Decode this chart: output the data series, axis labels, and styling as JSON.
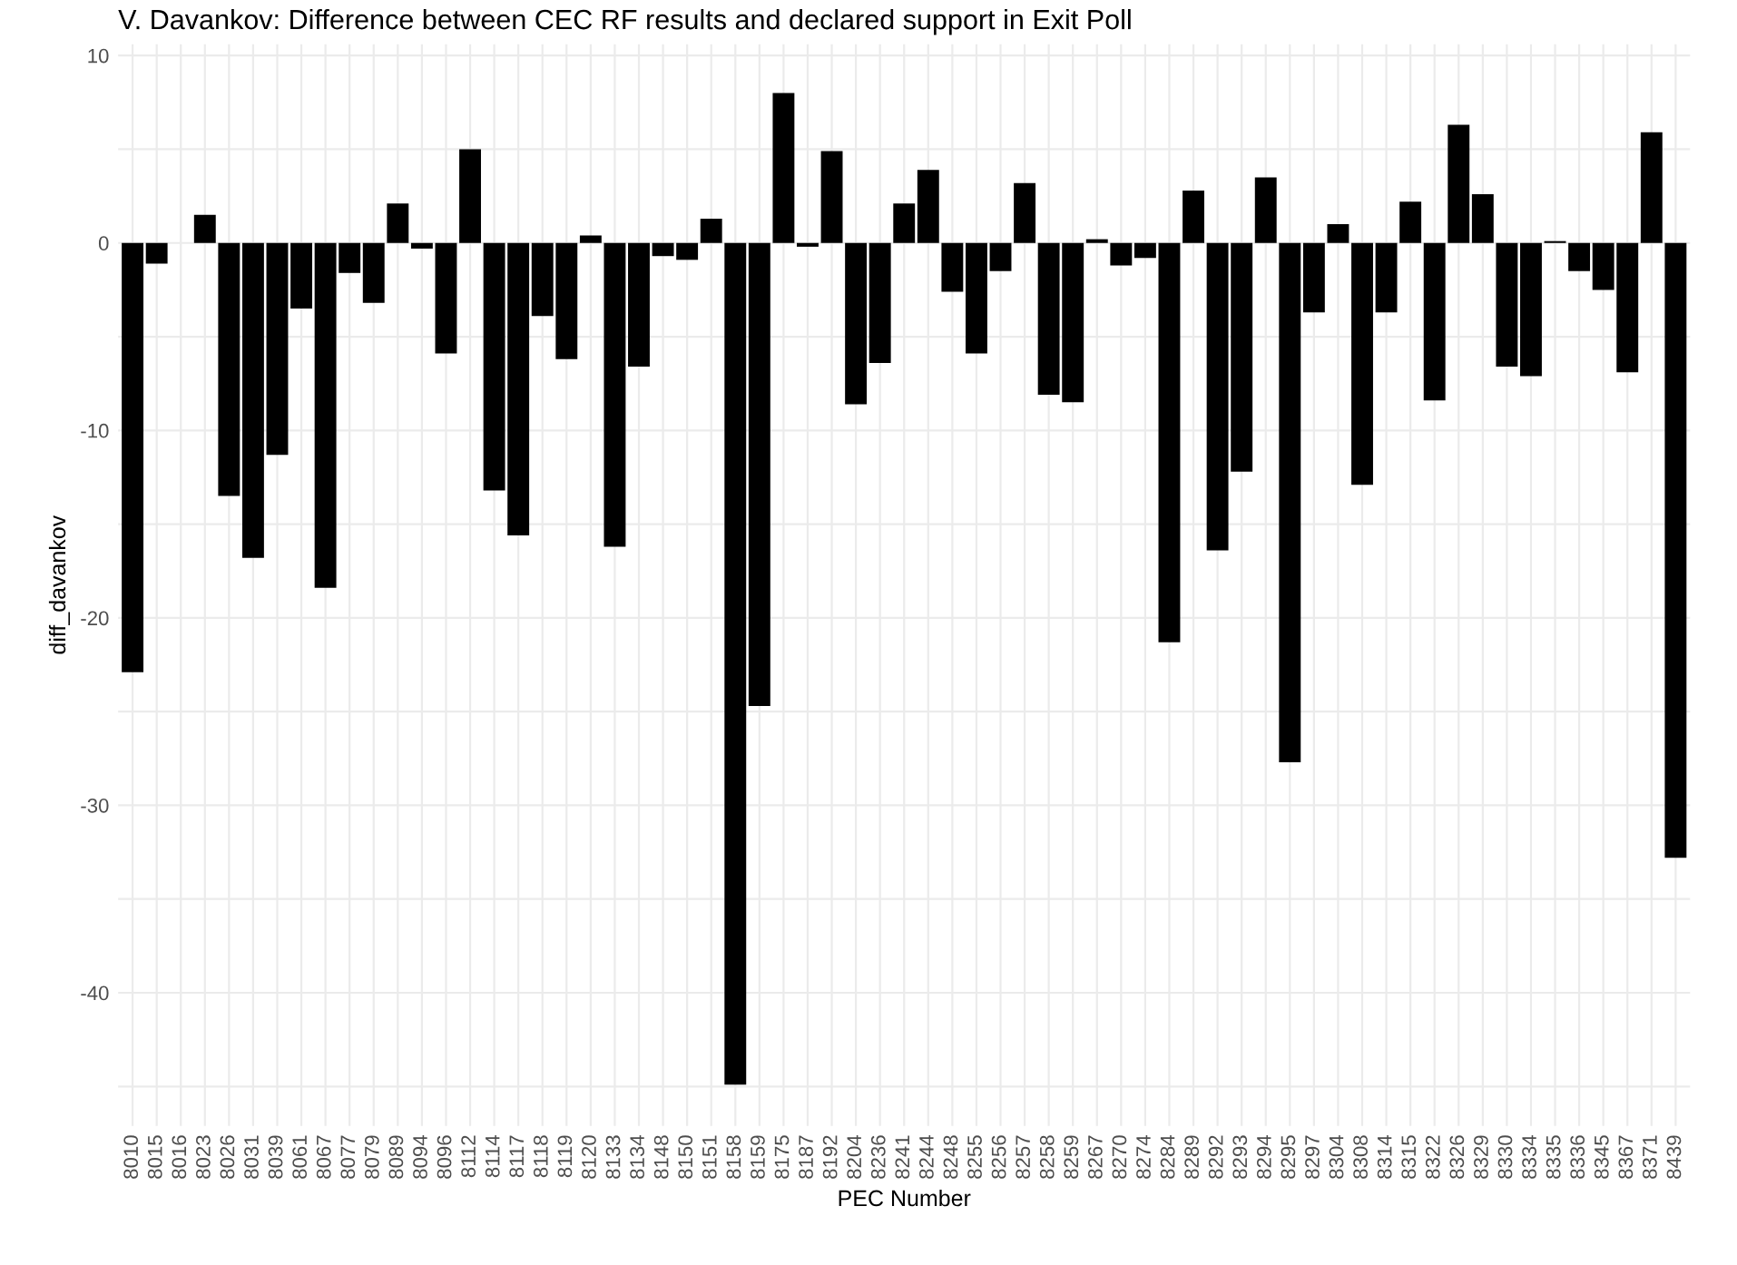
{
  "chart_data": {
    "type": "bar",
    "title": "V. Davankov: Difference between CEC RF results and declared support in Exit Poll",
    "xlabel": "PEC Number",
    "ylabel": "diff_davankov",
    "categories": [
      "8010",
      "8015",
      "8016",
      "8023",
      "8026",
      "8031",
      "8039",
      "8061",
      "8067",
      "8077",
      "8079",
      "8089",
      "8094",
      "8096",
      "8112",
      "8114",
      "8117",
      "8118",
      "8119",
      "8120",
      "8133",
      "8134",
      "8148",
      "8150",
      "8151",
      "8158",
      "8159",
      "8175",
      "8187",
      "8192",
      "8204",
      "8236",
      "8241",
      "8244",
      "8248",
      "8255",
      "8256",
      "8257",
      "8258",
      "8259",
      "8267",
      "8270",
      "8274",
      "8284",
      "8289",
      "8292",
      "8293",
      "8294",
      "8295",
      "8297",
      "8304",
      "8308",
      "8314",
      "8315",
      "8322",
      "8326",
      "8329",
      "8330",
      "8334",
      "8335",
      "8336",
      "8345",
      "8367",
      "8371",
      "8439"
    ],
    "values": [
      -22.9,
      -1.1,
      null,
      1.5,
      -13.5,
      -16.8,
      -11.3,
      -3.5,
      -18.4,
      -1.6,
      -3.2,
      2.1,
      -0.3,
      -5.9,
      5.0,
      -13.2,
      -15.6,
      -3.9,
      -6.2,
      0.4,
      -16.2,
      -6.6,
      -0.7,
      -0.9,
      1.3,
      -44.9,
      -24.7,
      8.0,
      -0.2,
      4.9,
      -8.6,
      -6.4,
      2.1,
      3.9,
      -2.6,
      -5.9,
      -1.5,
      3.2,
      -8.1,
      -8.5,
      0.2,
      -1.2,
      -0.8,
      -21.3,
      2.8,
      -16.4,
      -12.2,
      3.5,
      -27.7,
      -3.7,
      1.0,
      -12.9,
      -3.7,
      2.2,
      -8.4,
      6.3,
      2.6,
      -6.6,
      -7.1,
      0.1,
      -1.5,
      -2.5,
      -6.9,
      5.9,
      -32.8
    ],
    "color": "#000000",
    "ylim": [
      -47.1,
      10.6
    ],
    "yticks": [
      {
        "value": -45,
        "label": null
      },
      -40,
      {
        "value": -35,
        "label": null
      },
      -30,
      {
        "value": -25,
        "label": null
      },
      -20,
      {
        "value": -15,
        "label": null
      },
      -10,
      {
        "value": -5,
        "label": null
      },
      0,
      {
        "value": 5,
        "label": null
      },
      10
    ],
    "grid": true
  }
}
